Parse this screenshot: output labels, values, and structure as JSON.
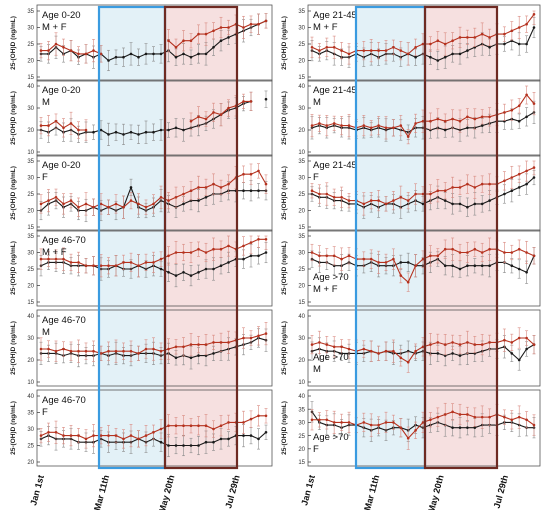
{
  "figure": {
    "y_axis_label": "25-(OH)D (ng/mL)",
    "x_tick_labels": [
      "Jan 1st",
      "Mar 11th",
      "May 20th",
      "Jul 29th"
    ],
    "colors": {
      "series_dark": "#1a1a1a",
      "series_red": "#b5321f",
      "error_bar_red": "#d98a80",
      "error_bar_dark": "#8a8a8a",
      "shade_blue": "#deeef6",
      "border_blue": "#3a9be0",
      "shade_red": "#f4dada",
      "border_brown": "#6e2a22",
      "panel_border": "#555555"
    }
  },
  "chart_data": [
    {
      "type": "line",
      "label": "Age 0-20 M + F",
      "ylim": [
        15,
        35
      ],
      "yticks": [
        15,
        20,
        25,
        30,
        35
      ],
      "series": [
        {
          "color": "black",
          "values": [
            22,
            22,
            24,
            22,
            23,
            21,
            22,
            21,
            22,
            20,
            21,
            21,
            22,
            21,
            22,
            22,
            22,
            23,
            21,
            22,
            21,
            22,
            22,
            24,
            26,
            27,
            28,
            29,
            30,
            31,
            32
          ]
        },
        {
          "color": "red",
          "values": [
            23,
            23,
            25,
            24,
            23,
            22,
            22,
            23,
            22,
            null,
            null,
            null,
            null,
            null,
            null,
            null,
            null,
            26,
            24,
            26,
            26,
            28,
            28,
            29,
            30,
            30,
            31,
            30,
            31,
            31,
            32
          ]
        }
      ]
    },
    {
      "type": "line",
      "label": "Age 21-45 M + F",
      "ylim": [
        15,
        35
      ],
      "yticks": [
        15,
        20,
        25,
        30,
        35
      ],
      "series": [
        {
          "color": "black",
          "values": [
            23,
            22,
            23,
            22,
            21,
            21,
            22,
            21,
            22,
            21,
            22,
            22,
            21,
            22,
            21,
            22,
            21,
            20,
            21,
            22,
            22,
            23,
            24,
            25,
            24,
            25,
            25,
            26,
            25,
            25,
            30
          ]
        },
        {
          "color": "red",
          "values": [
            24,
            23,
            24,
            24,
            23,
            22,
            23,
            23,
            23,
            23,
            23,
            24,
            23,
            22,
            24,
            25,
            25,
            26,
            25,
            26,
            27,
            27,
            27,
            28,
            27,
            28,
            28,
            29,
            30,
            31,
            34
          ]
        }
      ]
    },
    {
      "type": "line",
      "label": "Age 0-20 M",
      "ylim": [
        10,
        40
      ],
      "yticks": [
        10,
        20,
        30,
        40
      ],
      "series": [
        {
          "color": "black",
          "values": [
            20,
            19,
            21,
            19,
            20,
            18,
            19,
            19,
            20,
            18,
            19,
            18,
            19,
            18,
            19,
            19,
            20,
            20,
            21,
            20,
            21,
            22,
            23,
            25,
            27,
            29,
            30,
            32,
            33,
            null,
            34
          ]
        },
        {
          "color": "red",
          "values": [
            22,
            22,
            24,
            21,
            23,
            20,
            20,
            null,
            null,
            null,
            null,
            null,
            null,
            null,
            null,
            null,
            null,
            null,
            null,
            null,
            24,
            26,
            25,
            28,
            27,
            30,
            31,
            33,
            33,
            null,
            null
          ]
        }
      ]
    },
    {
      "type": "line",
      "label": "Age 21-45 M",
      "ylim": [
        10,
        40
      ],
      "yticks": [
        10,
        20,
        30,
        40
      ],
      "series": [
        {
          "color": "black",
          "values": [
            21,
            22,
            21,
            22,
            21,
            21,
            20,
            21,
            20,
            21,
            20,
            21,
            20,
            19,
            21,
            21,
            20,
            21,
            20,
            21,
            20,
            21,
            21,
            22,
            23,
            24,
            24,
            25,
            24,
            26,
            28
          ]
        },
        {
          "color": "red",
          "values": [
            22,
            23,
            22,
            23,
            22,
            22,
            21,
            22,
            21,
            22,
            21,
            21,
            22,
            17,
            23,
            24,
            24,
            25,
            24,
            25,
            24,
            26,
            25,
            26,
            26,
            27,
            28,
            29,
            31,
            36,
            32
          ]
        }
      ]
    },
    {
      "type": "line",
      "label": "Age 0-20 F",
      "ylim": [
        15,
        35
      ],
      "yticks": [
        15,
        20,
        25,
        30,
        35
      ],
      "series": [
        {
          "color": "black",
          "values": [
            20,
            22,
            23,
            21,
            22,
            20,
            20,
            21,
            20,
            21,
            20,
            21,
            27,
            21,
            20,
            21,
            23,
            22,
            21,
            22,
            23,
            23,
            24,
            25,
            25,
            26,
            26,
            26,
            26,
            26,
            26
          ]
        },
        {
          "color": "red",
          "values": [
            22,
            23,
            24,
            22,
            23,
            21,
            22,
            21,
            22,
            21,
            22,
            21,
            23,
            22,
            21,
            22,
            24,
            23,
            24,
            25,
            26,
            27,
            27,
            28,
            27,
            28,
            30,
            31,
            31,
            32,
            28
          ]
        }
      ]
    },
    {
      "type": "line",
      "label": "Age 21-45 F",
      "ylim": [
        15,
        35
      ],
      "yticks": [
        15,
        20,
        25,
        30,
        35
      ],
      "series": [
        {
          "color": "black",
          "values": [
            25,
            24,
            24,
            23,
            23,
            22,
            22,
            21,
            22,
            21,
            22,
            22,
            21,
            22,
            23,
            22,
            23,
            24,
            23,
            22,
            22,
            21,
            22,
            22,
            23,
            24,
            25,
            26,
            27,
            28,
            30
          ]
        },
        {
          "color": "red",
          "values": [
            26,
            25,
            25,
            24,
            24,
            23,
            23,
            22,
            23,
            23,
            22,
            23,
            24,
            23,
            25,
            25,
            25,
            26,
            26,
            27,
            27,
            28,
            27,
            28,
            28,
            28,
            29,
            30,
            31,
            32,
            33
          ]
        }
      ]
    },
    {
      "type": "line",
      "label": "Age 46-70 M + F",
      "ylim": [
        15,
        35
      ],
      "yticks": [
        15,
        20,
        25,
        30,
        35
      ],
      "series": [
        {
          "color": "black",
          "values": [
            26,
            27,
            27,
            27,
            26,
            26,
            26,
            26,
            25,
            25,
            26,
            25,
            25,
            26,
            25,
            26,
            25,
            24,
            23,
            24,
            23,
            24,
            25,
            25,
            26,
            27,
            28,
            28,
            29,
            29,
            30
          ]
        },
        {
          "color": "red",
          "values": [
            28,
            28,
            28,
            28,
            27,
            27,
            26,
            26,
            26,
            26,
            26,
            27,
            27,
            26,
            27,
            27,
            28,
            29,
            30,
            30,
            30,
            31,
            30,
            31,
            31,
            32,
            31,
            32,
            33,
            34,
            34
          ]
        }
      ]
    },
    {
      "type": "line",
      "label": "Age >70 M + F",
      "ylim": [
        15,
        35
      ],
      "yticks": [
        15,
        20,
        25,
        30,
        35
      ],
      "series": [
        {
          "color": "black",
          "values": [
            28,
            27,
            27,
            26,
            26,
            27,
            26,
            26,
            27,
            26,
            26,
            26,
            27,
            27,
            26,
            26,
            27,
            28,
            26,
            26,
            25,
            26,
            26,
            26,
            26,
            27,
            27,
            26,
            25,
            24,
            29
          ]
        },
        {
          "color": "red",
          "values": [
            30,
            29,
            29,
            29,
            28,
            29,
            28,
            28,
            28,
            27,
            27,
            28,
            23,
            21,
            26,
            28,
            29,
            29,
            31,
            31,
            30,
            30,
            31,
            30,
            31,
            31,
            30,
            30,
            31,
            30,
            29
          ]
        }
      ]
    },
    {
      "type": "line",
      "label": "Age 46-70 M",
      "ylim": [
        10,
        40
      ],
      "yticks": [
        10,
        20,
        30,
        40
      ],
      "series": [
        {
          "color": "black",
          "values": [
            23,
            23,
            23,
            22,
            23,
            22,
            22,
            22,
            23,
            22,
            23,
            22,
            22,
            23,
            23,
            23,
            22,
            23,
            21,
            22,
            21,
            22,
            22,
            23,
            24,
            25,
            26,
            27,
            28,
            30,
            29
          ]
        },
        {
          "color": "red",
          "values": [
            25,
            25,
            24,
            25,
            24,
            24,
            24,
            24,
            23,
            24,
            24,
            24,
            24,
            23,
            25,
            25,
            24,
            25,
            26,
            26,
            27,
            27,
            27,
            28,
            28,
            28,
            29,
            30,
            30,
            31,
            32
          ]
        }
      ]
    },
    {
      "type": "line",
      "label": "Age >70 M",
      "ylim": [
        10,
        40
      ],
      "yticks": [
        10,
        20,
        30,
        40
      ],
      "series": [
        {
          "color": "black",
          "values": [
            24,
            25,
            24,
            24,
            23,
            23,
            23,
            23,
            24,
            23,
            24,
            23,
            23,
            24,
            23,
            24,
            23,
            23,
            22,
            23,
            22,
            23,
            23,
            24,
            25,
            25,
            26,
            23,
            20,
            25,
            27
          ]
        },
        {
          "color": "red",
          "values": [
            27,
            28,
            27,
            26,
            26,
            25,
            24,
            25,
            24,
            23,
            24,
            24,
            21,
            19,
            24,
            26,
            27,
            28,
            27,
            28,
            27,
            28,
            27,
            27,
            28,
            28,
            29,
            28,
            30,
            30,
            27
          ]
        }
      ]
    },
    {
      "type": "line",
      "label": "Age 46-70 F",
      "ylim": [
        20,
        40
      ],
      "yticks": [
        20,
        25,
        30,
        35,
        40
      ],
      "series": [
        {
          "color": "black",
          "values": [
            27,
            28,
            27,
            27,
            27,
            26,
            26,
            26,
            27,
            26,
            26,
            26,
            26,
            27,
            26,
            27,
            26,
            25,
            25,
            25,
            25,
            25,
            26,
            26,
            27,
            27,
            28,
            28,
            28,
            27,
            29
          ]
        },
        {
          "color": "red",
          "values": [
            28,
            29,
            29,
            28,
            28,
            28,
            27,
            28,
            28,
            28,
            28,
            27,
            28,
            27,
            28,
            29,
            30,
            31,
            31,
            31,
            31,
            31,
            31,
            30,
            31,
            32,
            32,
            32,
            33,
            34,
            34
          ]
        }
      ]
    },
    {
      "type": "line",
      "label": "Age >70 F",
      "ylim": [
        15,
        40
      ],
      "yticks": [
        15,
        20,
        25,
        30,
        35,
        40
      ],
      "series": [
        {
          "color": "black",
          "values": [
            34,
            30,
            29,
            29,
            28,
            29,
            29,
            28,
            27,
            28,
            27,
            28,
            28,
            27,
            29,
            28,
            29,
            30,
            29,
            28,
            28,
            28,
            28,
            29,
            29,
            29,
            30,
            30,
            29,
            28,
            28
          ]
        },
        {
          "color": "red",
          "values": [
            31,
            31,
            31,
            30,
            30,
            30,
            29,
            30,
            29,
            29,
            30,
            30,
            28,
            24,
            27,
            30,
            31,
            32,
            33,
            34,
            33,
            33,
            32,
            32,
            32,
            33,
            32,
            31,
            32,
            31,
            29
          ]
        }
      ]
    }
  ]
}
